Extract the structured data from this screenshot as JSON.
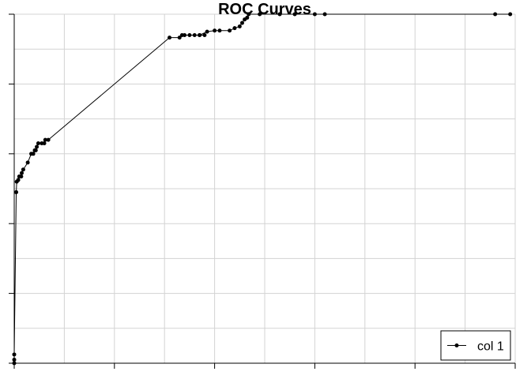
{
  "chart_data": {
    "type": "line",
    "title": "ROC Curves",
    "xlabel": "",
    "ylabel": "",
    "xlim": [
      0,
      1
    ],
    "ylim": [
      0,
      1
    ],
    "grid": true,
    "legend_position": "bottom-right",
    "series": [
      {
        "name": "col 1",
        "color": "#000000",
        "marker": "circle",
        "points": [
          [
            0.0,
            0.0
          ],
          [
            0.0,
            0.01
          ],
          [
            0.0,
            0.025
          ],
          [
            0.004,
            0.49
          ],
          [
            0.005,
            0.52
          ],
          [
            0.008,
            0.525
          ],
          [
            0.01,
            0.535
          ],
          [
            0.014,
            0.535
          ],
          [
            0.015,
            0.545
          ],
          [
            0.018,
            0.555
          ],
          [
            0.027,
            0.575
          ],
          [
            0.034,
            0.6
          ],
          [
            0.038,
            0.6
          ],
          [
            0.041,
            0.61
          ],
          [
            0.043,
            0.61
          ],
          [
            0.045,
            0.62
          ],
          [
            0.048,
            0.63
          ],
          [
            0.055,
            0.63
          ],
          [
            0.06,
            0.63
          ],
          [
            0.062,
            0.64
          ],
          [
            0.068,
            0.64
          ],
          [
            0.31,
            0.933
          ],
          [
            0.33,
            0.933
          ],
          [
            0.335,
            0.94
          ],
          [
            0.34,
            0.94
          ],
          [
            0.35,
            0.94
          ],
          [
            0.36,
            0.94
          ],
          [
            0.37,
            0.94
          ],
          [
            0.38,
            0.94
          ],
          [
            0.37,
            0.94
          ],
          [
            0.385,
            0.95
          ],
          [
            0.4,
            0.953
          ],
          [
            0.41,
            0.953
          ],
          [
            0.43,
            0.953
          ],
          [
            0.44,
            0.96
          ],
          [
            0.45,
            0.965
          ],
          [
            0.455,
            0.975
          ],
          [
            0.46,
            0.985
          ],
          [
            0.465,
            0.99
          ],
          [
            0.468,
            1.0
          ],
          [
            0.49,
            1.0
          ],
          [
            0.53,
            1.0
          ],
          [
            0.56,
            1.0
          ],
          [
            0.6,
            1.0
          ],
          [
            0.62,
            1.0
          ],
          [
            0.96,
            1.0
          ],
          [
            0.99,
            1.0
          ]
        ]
      }
    ]
  }
}
